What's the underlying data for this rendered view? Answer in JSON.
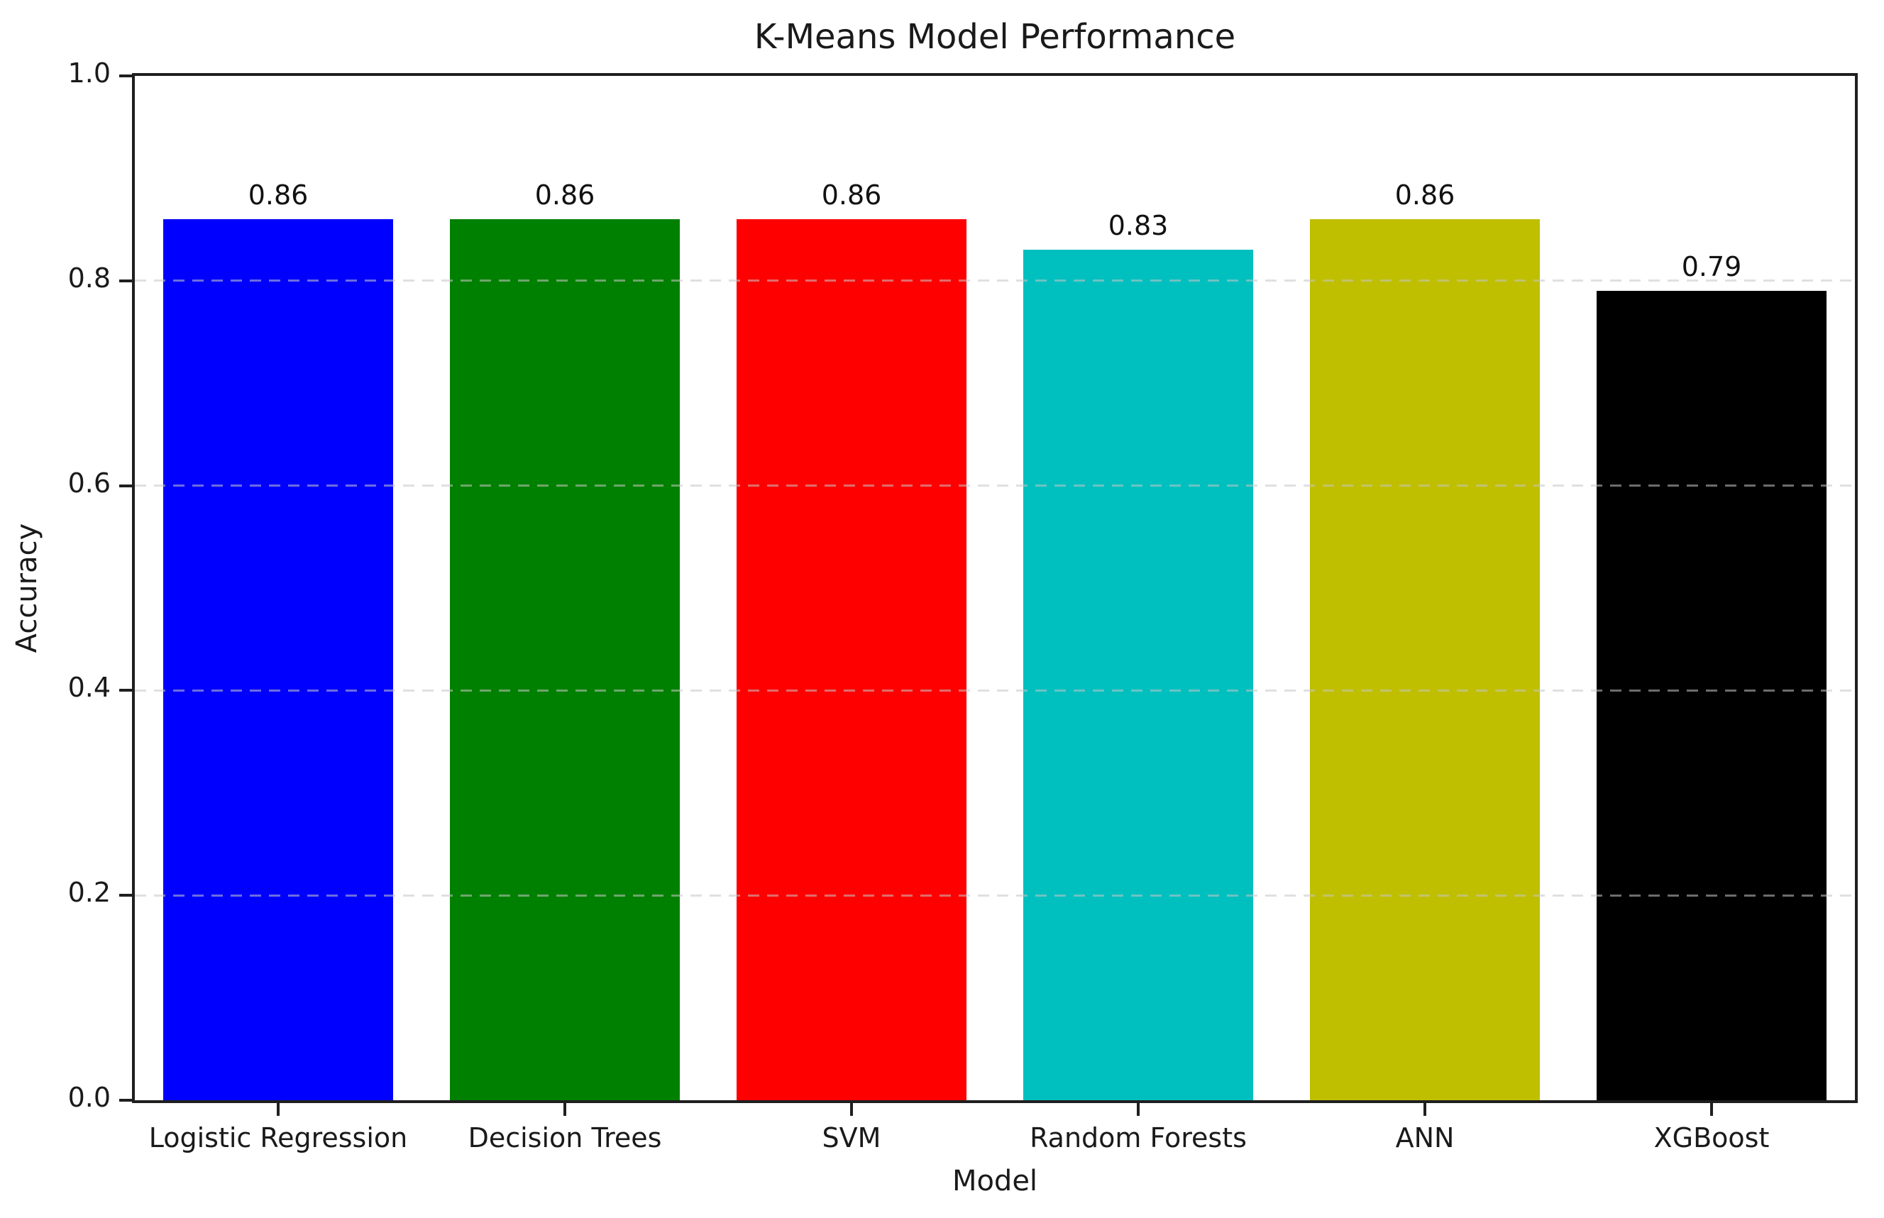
{
  "figure": {
    "background": "#ffffff",
    "text_color": "#1a1a1a",
    "spine_color": "#1f1f1f"
  },
  "chart_data": {
    "type": "bar",
    "title": "K-Means Model Performance",
    "xlabel": "Model",
    "ylabel": "Accuracy",
    "categories": [
      "Logistic Regression",
      "Decision Trees",
      "SVM",
      "Random Forests",
      "ANN",
      "XGBoost"
    ],
    "values": [
      0.86,
      0.86,
      0.86,
      0.83,
      0.86,
      0.79
    ],
    "bar_labels": [
      "0.86",
      "0.86",
      "0.86",
      "0.83",
      "0.86",
      "0.79"
    ],
    "bar_colors": [
      "#0000ff",
      "#008000",
      "#ff0000",
      "#00bfbf",
      "#bfbf00",
      "#000000"
    ],
    "ylim": [
      0.0,
      1.0
    ],
    "yticks": [
      0.0,
      0.2,
      0.4,
      0.6,
      0.8,
      1.0
    ],
    "ytick_labels": [
      "0.0",
      "0.2",
      "0.4",
      "0.6",
      "0.8",
      "1.0"
    ],
    "bar_width_fraction": 0.8,
    "grid": {
      "axis": "y",
      "style": "dashed",
      "color": "#c6c6c6",
      "drawn_above_bars": true
    },
    "legend": null
  }
}
